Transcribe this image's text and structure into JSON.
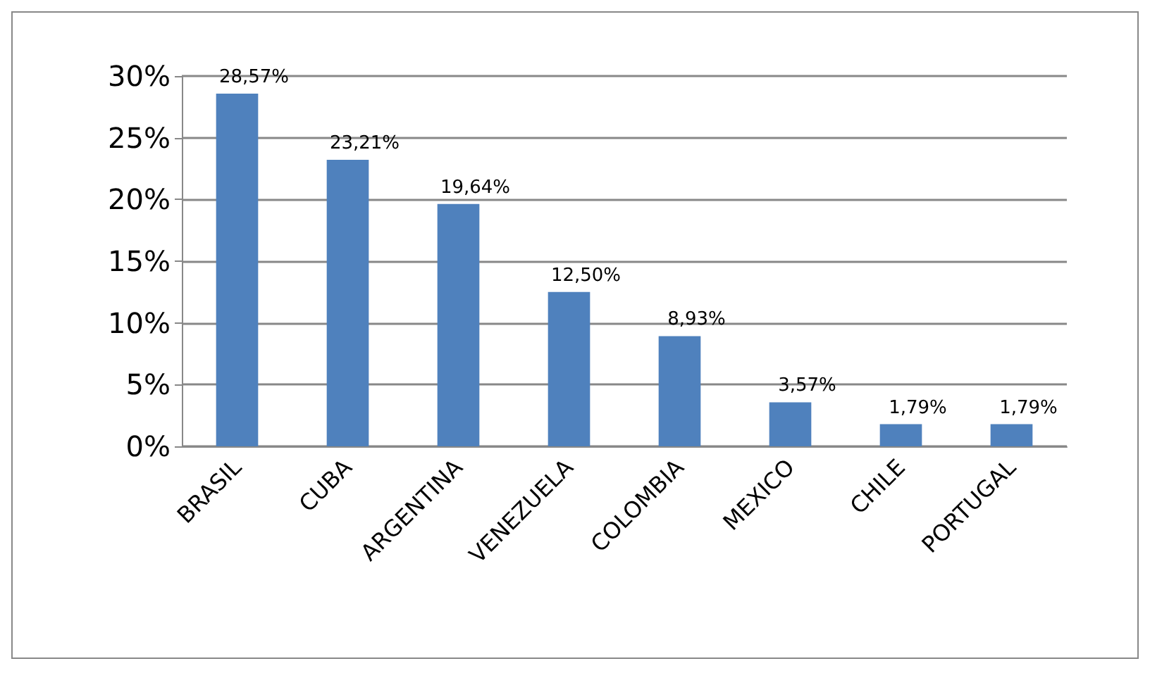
{
  "chart_data": {
    "type": "bar",
    "categories": [
      "BRASIL",
      "CUBA",
      "ARGENTINA",
      "VENEZUELA",
      "COLOMBIA",
      "MEXICO",
      "CHILE",
      "PORTUGAL"
    ],
    "values": [
      28.57,
      23.21,
      19.64,
      12.5,
      8.93,
      3.57,
      1.79,
      1.79
    ],
    "value_labels": [
      "28,57%",
      "23,21%",
      "19,64%",
      "12,50%",
      "8,93%",
      "3,57%",
      "1,79%",
      "1,79%"
    ],
    "color": "#4f81bd",
    "ylim": [
      0,
      30
    ],
    "yticks": [
      {
        "value": 0,
        "label": "0%"
      },
      {
        "value": 5,
        "label": "5%"
      },
      {
        "value": 10,
        "label": "10%"
      },
      {
        "value": 15,
        "label": "15%"
      },
      {
        "value": 20,
        "label": "20%"
      },
      {
        "value": 25,
        "label": "25%"
      },
      {
        "value": 30,
        "label": "30%"
      }
    ],
    "grid": "y"
  }
}
